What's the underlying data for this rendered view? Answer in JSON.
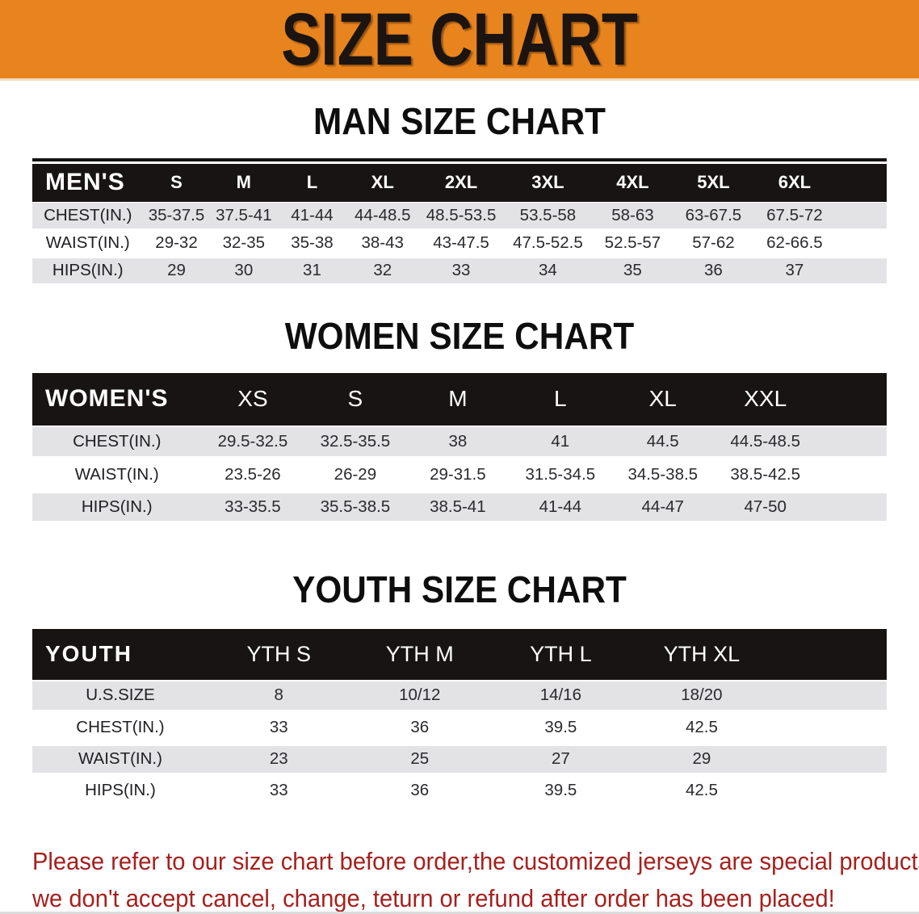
{
  "banner": {
    "title": "SIZE CHART"
  },
  "colors": {
    "banner_orange": "#E8841E",
    "header_bar_black": "#181414",
    "row_stripe_gray": "#E3E3E5",
    "footer_red": "#A5211E"
  },
  "sections": [
    {
      "id": "men",
      "heading": "MAN SIZE CHART",
      "table": {
        "label": "MEN'S",
        "columns": [
          "S",
          "M",
          "L",
          "XL",
          "2XL",
          "3XL",
          "4XL",
          "5XL",
          "6XL"
        ],
        "rows": [
          {
            "label": "CHEST(IN.)",
            "values": [
              "35-37.5",
              "37.5-41",
              "41-44",
              "44-48.5",
              "48.5-53.5",
              "53.5-58",
              "58-63",
              "63-67.5",
              "67.5-72"
            ]
          },
          {
            "label": "WAIST(IN.)",
            "values": [
              "29-32",
              "32-35",
              "35-38",
              "38-43",
              "43-47.5",
              "47.5-52.5",
              "52.5-57",
              "57-62",
              "62-66.5"
            ]
          },
          {
            "label": "HIPS(IN.)",
            "values": [
              "29",
              "30",
              "31",
              "32",
              "33",
              "34",
              "35",
              "36",
              "37"
            ]
          }
        ]
      }
    },
    {
      "id": "women",
      "heading": "WOMEN SIZE CHART",
      "table": {
        "label": "WOMEN'S",
        "columns": [
          "XS",
          "S",
          "M",
          "L",
          "XL",
          "XXL"
        ],
        "rows": [
          {
            "label": "CHEST(IN.)",
            "values": [
              "29.5-32.5",
              "32.5-35.5",
              "38",
              "41",
              "44.5",
              "44.5-48.5"
            ]
          },
          {
            "label": "WAIST(IN.)",
            "values": [
              "23.5-26",
              "26-29",
              "29-31.5",
              "31.5-34.5",
              "34.5-38.5",
              "38.5-42.5"
            ]
          },
          {
            "label": "HIPS(IN.)",
            "values": [
              "33-35.5",
              "35.5-38.5",
              "38.5-41",
              "41-44",
              "44-47",
              "47-50"
            ]
          }
        ]
      }
    },
    {
      "id": "youth",
      "heading": "YOUTH SIZE CHART",
      "table": {
        "label": "YOUTH",
        "columns": [
          "YTH S",
          "YTH M",
          "YTH L",
          "YTH XL"
        ],
        "rows": [
          {
            "label": "U.S.SIZE",
            "values": [
              "8",
              "10/12",
              "14/16",
              "18/20"
            ]
          },
          {
            "label": "CHEST(IN.)",
            "values": [
              "33",
              "36",
              "39.5",
              "42.5"
            ]
          },
          {
            "label": "WAIST(IN.)",
            "values": [
              "23",
              "25",
              "27",
              "29"
            ]
          },
          {
            "label": "HIPS(IN.)",
            "values": [
              "33",
              "36",
              "39.5",
              "42.5"
            ]
          }
        ]
      }
    }
  ],
  "footer": {
    "line1": "Please refer to our size chart before order,the customized jerseys are special products,",
    "line2": "we don't accept cancel, change, teturn or refund after order has been placed!"
  }
}
